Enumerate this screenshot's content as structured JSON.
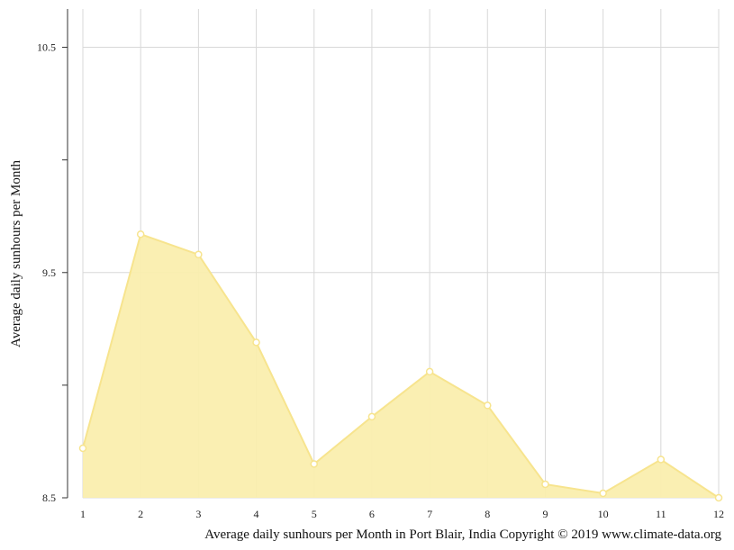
{
  "chart_data": {
    "type": "area",
    "x": [
      1,
      2,
      3,
      4,
      5,
      6,
      7,
      8,
      9,
      10,
      11,
      12
    ],
    "series": [
      {
        "values": [
          8.72,
          9.67,
          9.58,
          9.19,
          8.65,
          8.86,
          9.06,
          8.91,
          8.56,
          8.52,
          8.67,
          8.5
        ]
      }
    ],
    "xlabel": "Average daily sunhours per Month in Port Blair, India Copyright © 2019 www.climate-data.org",
    "ylabel": "Average daily sunhours per Month",
    "xlim": [
      1,
      12
    ],
    "ylim": [
      8.5,
      10.67
    ],
    "yticks": [
      8.5,
      9.0,
      9.5,
      10.0,
      10.5
    ],
    "ytick_labels": [
      "8.5",
      "",
      "9.5",
      "",
      "10.5"
    ],
    "grid": true,
    "colors": {
      "fill": "#faeeae",
      "line": "#f7e48e",
      "grid": "#d8d8d8",
      "axis": "#333333"
    }
  }
}
